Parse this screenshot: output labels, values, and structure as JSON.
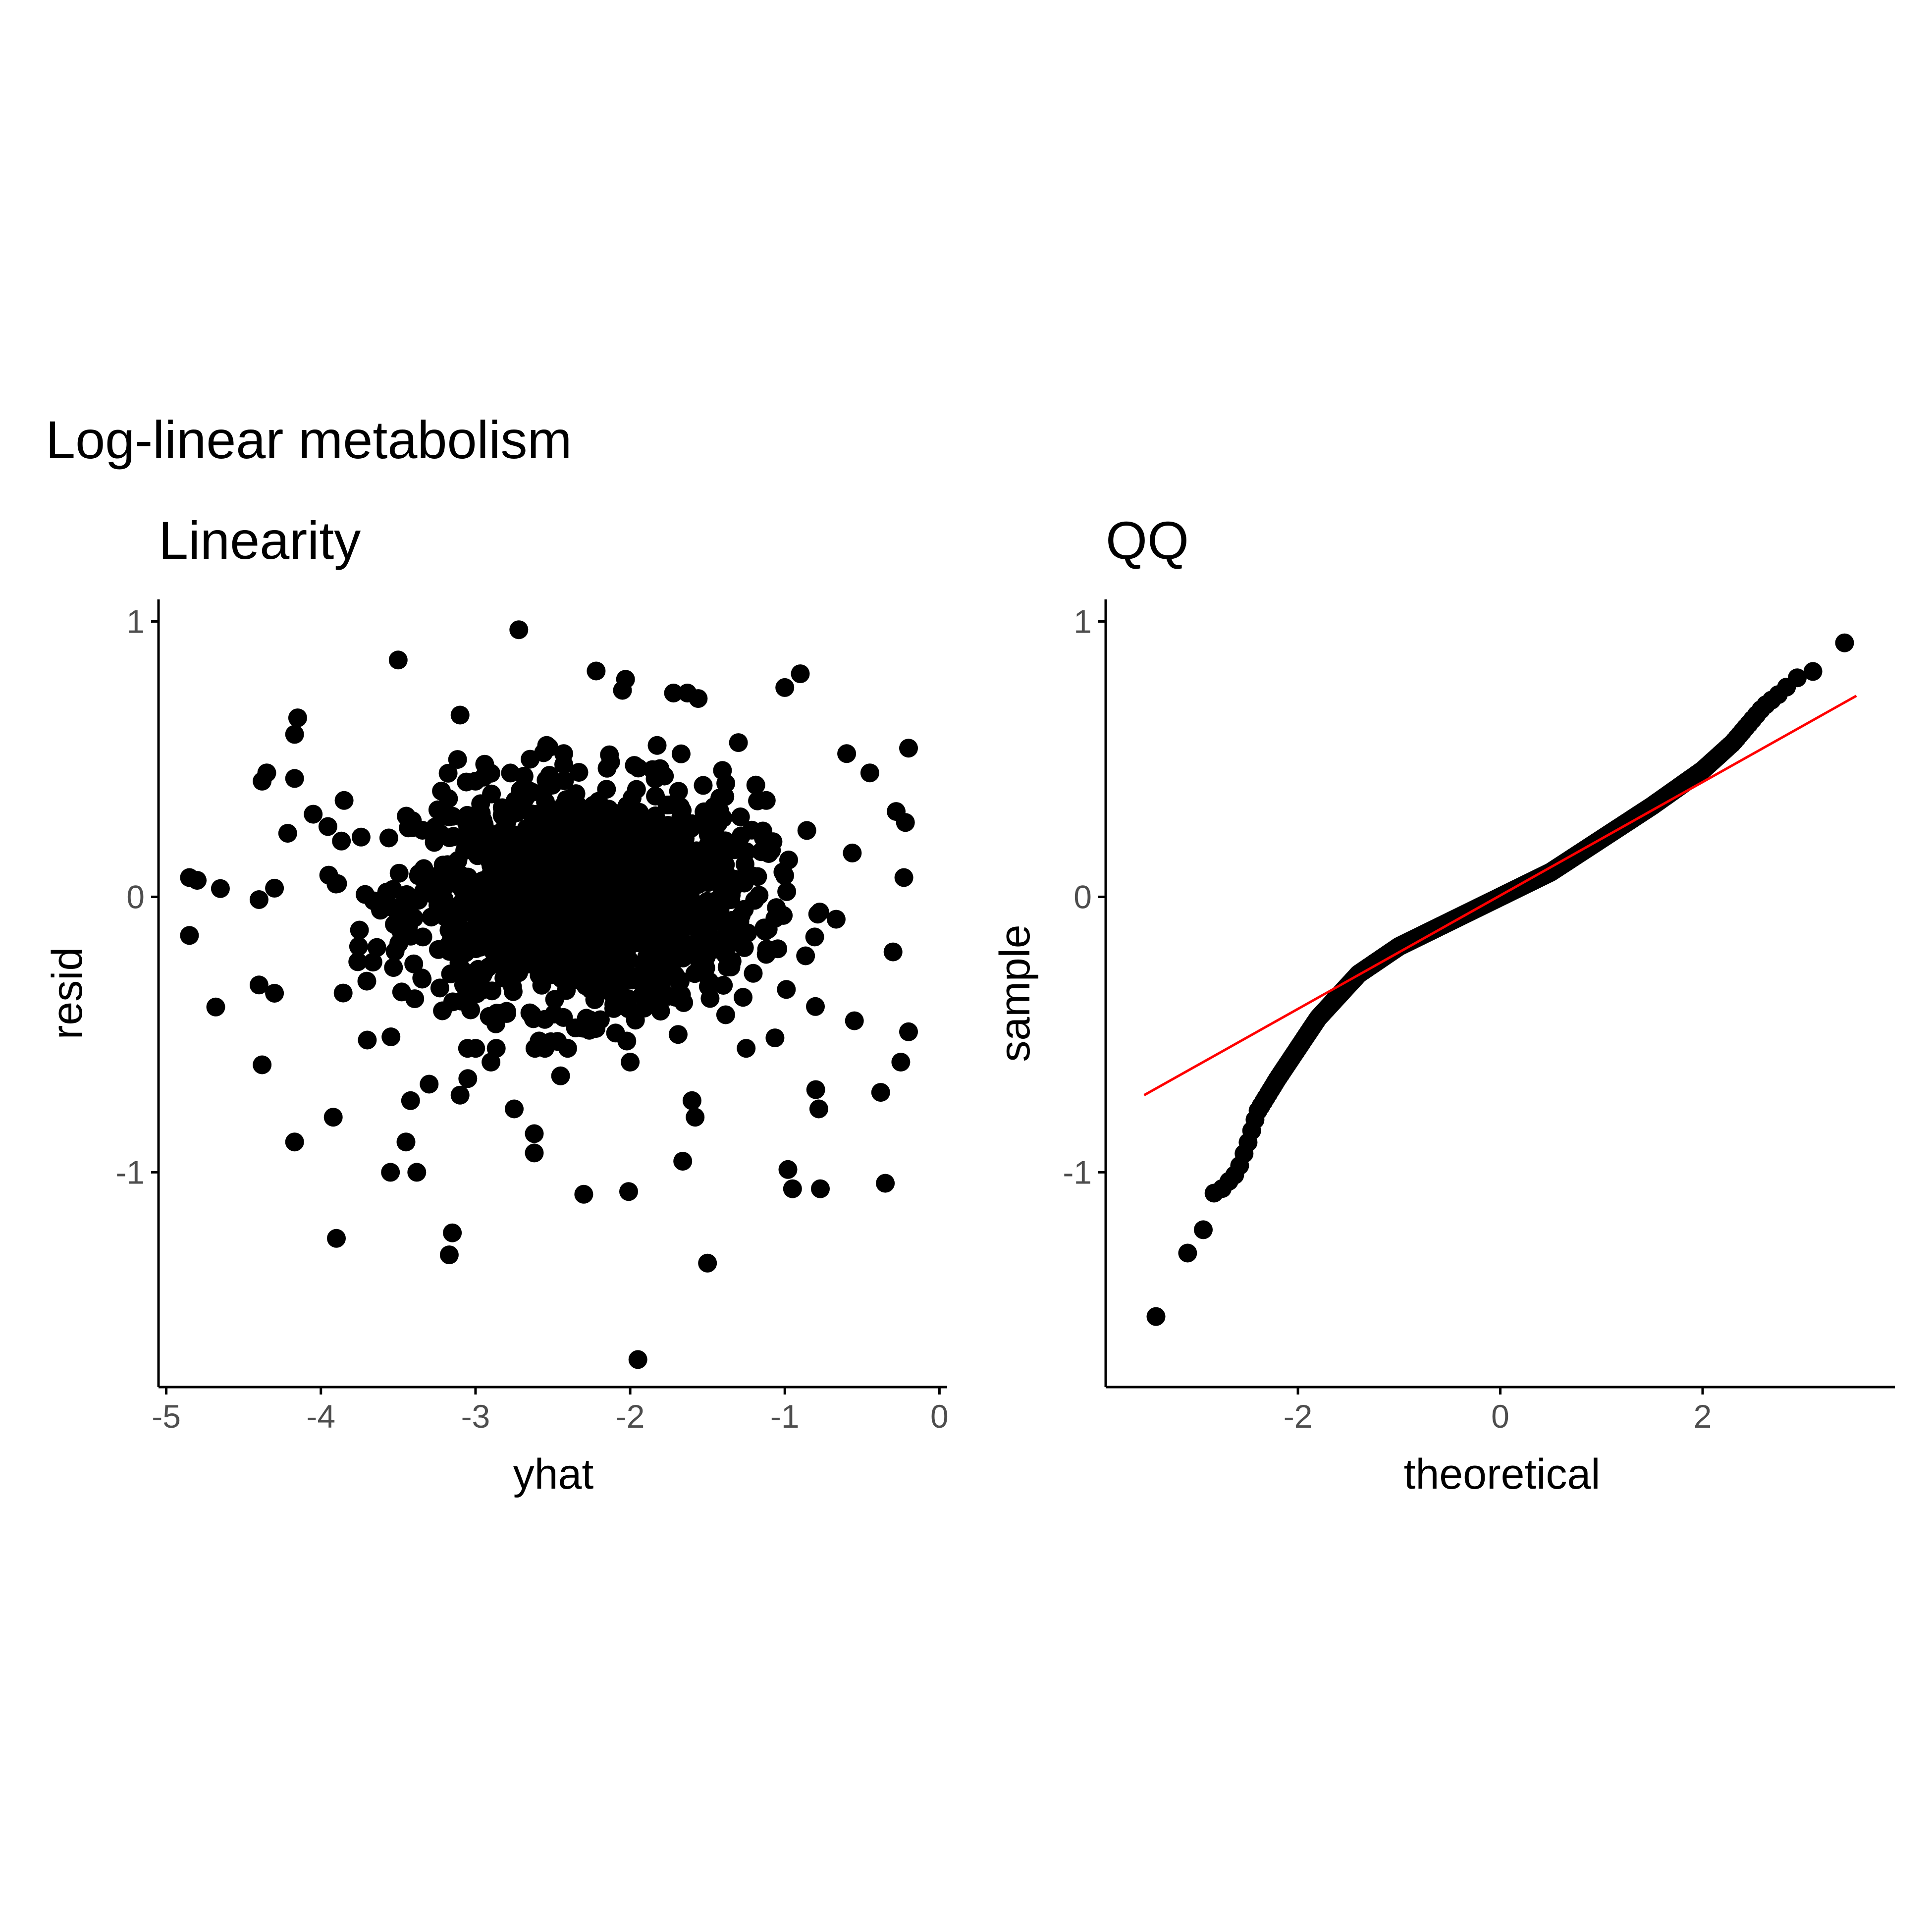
{
  "figure": {
    "title": "Log-linear metabolism",
    "colors": {
      "points": "#000000",
      "fit_line": "#ff0000",
      "axis": "#000000",
      "tick_label": "#4d4d4d"
    }
  },
  "chart_data": [
    {
      "type": "scatter",
      "title": "Linearity",
      "xlabel": "yhat",
      "ylabel": "resid",
      "xlim": [
        -5.05,
        0.05
      ],
      "ylim": [
        -1.78,
        1.08
      ],
      "xticks": [
        -5,
        -4,
        -3,
        -2,
        -1,
        0
      ],
      "yticks": [
        -1,
        0,
        1
      ],
      "xtick_labels": [
        "-5",
        "-4",
        "-3",
        "-2",
        "-1",
        "0"
      ],
      "ytick_labels": [
        "-1",
        "0",
        "1"
      ],
      "grid": false,
      "cloud": {
        "n": 1500,
        "x_mean": -2.3,
        "x_sd": 0.55,
        "y_sd": 0.2
      },
      "points": [
        [
          -4.85,
          0.07
        ],
        [
          -4.8,
          0.06
        ],
        [
          -4.65,
          0.03
        ],
        [
          -4.85,
          -0.14
        ],
        [
          -4.68,
          -0.4
        ],
        [
          -4.4,
          -0.01
        ],
        [
          -4.38,
          -0.61
        ],
        [
          -4.4,
          -0.32
        ],
        [
          -4.38,
          0.42
        ],
        [
          -4.35,
          0.45
        ],
        [
          -4.15,
          0.65
        ],
        [
          -4.17,
          0.59
        ],
        [
          -4.17,
          0.43
        ],
        [
          -4.17,
          -0.89
        ],
        [
          -3.92,
          -0.8
        ],
        [
          -3.9,
          -1.24
        ],
        [
          -3.5,
          0.86
        ],
        [
          -3.45,
          -0.89
        ],
        [
          -3.42,
          -0.74
        ],
        [
          -3.38,
          -1.0
        ],
        [
          -3.55,
          -1.0
        ],
        [
          -3.1,
          0.66
        ],
        [
          -3.1,
          -0.72
        ],
        [
          -3.05,
          -0.66
        ],
        [
          -3.17,
          -1.3
        ],
        [
          -3.15,
          -1.22
        ],
        [
          -2.72,
          0.97
        ],
        [
          -2.62,
          -0.86
        ],
        [
          -2.62,
          -0.93
        ],
        [
          -2.3,
          -1.08
        ],
        [
          -2.22,
          0.82
        ],
        [
          -2.03,
          0.79
        ],
        [
          -2.05,
          0.75
        ],
        [
          -2.01,
          -1.07
        ],
        [
          -1.95,
          -1.68
        ],
        [
          -1.72,
          0.74
        ],
        [
          -1.63,
          0.74
        ],
        [
          -1.56,
          0.72
        ],
        [
          -1.6,
          -0.74
        ],
        [
          -1.58,
          -0.8
        ],
        [
          -1.66,
          -0.96
        ],
        [
          -1.5,
          -1.33
        ],
        [
          -1.0,
          0.76
        ],
        [
          -0.9,
          0.81
        ],
        [
          -0.98,
          -0.99
        ],
        [
          -0.95,
          -1.06
        ],
        [
          -0.77,
          -1.06
        ],
        [
          -0.8,
          -0.7
        ],
        [
          -0.78,
          -0.77
        ],
        [
          -0.38,
          -0.71
        ],
        [
          -0.35,
          -1.04
        ],
        [
          -0.2,
          0.54
        ],
        [
          -0.28,
          0.31
        ],
        [
          -0.2,
          -0.49
        ],
        [
          -0.25,
          -0.6
        ],
        [
          -0.23,
          0.07
        ],
        [
          -0.45,
          0.45
        ],
        [
          -0.6,
          0.52
        ],
        [
          -0.22,
          0.27
        ],
        [
          -0.3,
          -0.2
        ],
        [
          -2.43,
          0.52
        ],
        [
          -2.0,
          -0.6
        ],
        [
          -2.9,
          -0.6
        ],
        [
          -3.7,
          -0.52
        ],
        [
          -4.05,
          0.3
        ],
        [
          -3.3,
          -0.68
        ],
        [
          -3.0,
          0.42
        ],
        [
          -1.25,
          -0.55
        ],
        [
          -1.3,
          0.56
        ],
        [
          -2.45,
          -0.65
        ],
        [
          -2.75,
          -0.77
        ],
        [
          -4.3,
          -0.35
        ],
        [
          -3.85,
          0.35
        ],
        [
          -1.12,
          0.35
        ],
        [
          -0.55,
          -0.45
        ]
      ]
    },
    {
      "type": "scatter",
      "title": "QQ",
      "xlabel": "theoretical",
      "ylabel": "sample",
      "xlim": [
        -3.9,
        3.9
      ],
      "ylim": [
        -1.78,
        1.08
      ],
      "xticks": [
        -2,
        0,
        2
      ],
      "yticks": [
        -1,
        0,
        1
      ],
      "xtick_labels": [
        "-2",
        "0",
        "2"
      ],
      "ytick_labels": [
        "-1",
        "0",
        "1"
      ],
      "grid": false,
      "n": 1500,
      "reference_line": {
        "from": [
          -3.52,
          -0.72
        ],
        "to": [
          3.52,
          0.73
        ]
      },
      "quantile_curve": [
        [
          -3.52,
          -1.68
        ],
        [
          -3.25,
          -1.32
        ],
        [
          -3.1,
          -1.3
        ],
        [
          -2.98,
          -1.22
        ],
        [
          -2.9,
          -1.2
        ],
        [
          -2.85,
          -1.08
        ],
        [
          -2.75,
          -1.06
        ],
        [
          -2.6,
          -1.0
        ],
        [
          -2.5,
          -0.9
        ],
        [
          -2.4,
          -0.78
        ],
        [
          -2.2,
          -0.66
        ],
        [
          -2.0,
          -0.55
        ],
        [
          -1.8,
          -0.44
        ],
        [
          -1.6,
          -0.36
        ],
        [
          -1.4,
          -0.28
        ],
        [
          -1.2,
          -0.23
        ],
        [
          -1.0,
          -0.18
        ],
        [
          -0.5,
          -0.09
        ],
        [
          0.0,
          0.0
        ],
        [
          0.5,
          0.09
        ],
        [
          1.0,
          0.21
        ],
        [
          1.5,
          0.33
        ],
        [
          2.0,
          0.46
        ],
        [
          2.3,
          0.56
        ],
        [
          2.6,
          0.69
        ],
        [
          2.8,
          0.75
        ],
        [
          2.9,
          0.79
        ],
        [
          3.1,
          0.82
        ],
        [
          3.25,
          0.86
        ],
        [
          3.52,
          0.97
        ]
      ]
    }
  ]
}
